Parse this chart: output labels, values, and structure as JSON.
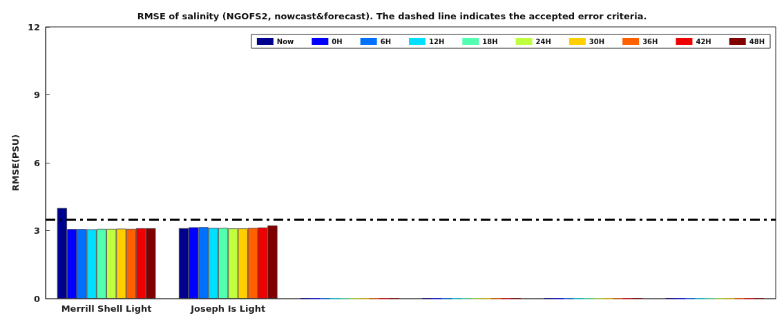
{
  "chart_data": {
    "type": "bar",
    "title": "RMSE of salinity (NGOFS2, nowcast&forecast). The dashed line indicates the accepted error criteria.",
    "ylabel": "RMSE(PSU)",
    "categories": [
      "Merrill Shell Light",
      "Joseph Is Light",
      null,
      null,
      null,
      null
    ],
    "series": [
      {
        "name": "Now",
        "color": "#00008f",
        "values": [
          4.0,
          3.11,
          0,
          0,
          0,
          0
        ]
      },
      {
        "name": "0H",
        "color": "#0000ff",
        "values": [
          3.07,
          3.15,
          0,
          0,
          0,
          0
        ]
      },
      {
        "name": "6H",
        "color": "#0070ff",
        "values": [
          3.07,
          3.16,
          0,
          0,
          0,
          0
        ]
      },
      {
        "name": "12H",
        "color": "#00dfff",
        "values": [
          3.06,
          3.12,
          0,
          0,
          0,
          0
        ]
      },
      {
        "name": "18H",
        "color": "#50ffaf",
        "values": [
          3.08,
          3.12,
          0,
          0,
          0,
          0
        ]
      },
      {
        "name": "24H",
        "color": "#bfff40",
        "values": [
          3.08,
          3.1,
          0,
          0,
          0,
          0
        ]
      },
      {
        "name": "30H",
        "color": "#ffcf00",
        "values": [
          3.09,
          3.1,
          0,
          0,
          0,
          0
        ]
      },
      {
        "name": "36H",
        "color": "#ff6000",
        "values": [
          3.08,
          3.12,
          0,
          0,
          0,
          0
        ]
      },
      {
        "name": "42H",
        "color": "#ef0000",
        "values": [
          3.11,
          3.14,
          0,
          0,
          0,
          0
        ]
      },
      {
        "name": "48H",
        "color": "#800000",
        "values": [
          3.11,
          3.23,
          0,
          0,
          0,
          0
        ]
      }
    ],
    "ylim": [
      0,
      12
    ],
    "yticks": [
      0,
      3,
      6,
      9,
      12
    ],
    "grid": false,
    "legend": "top right",
    "ref_lines": [
      {
        "axis": "y",
        "value": 3.5,
        "color": "#000000",
        "line_style": "dashed"
      }
    ]
  }
}
